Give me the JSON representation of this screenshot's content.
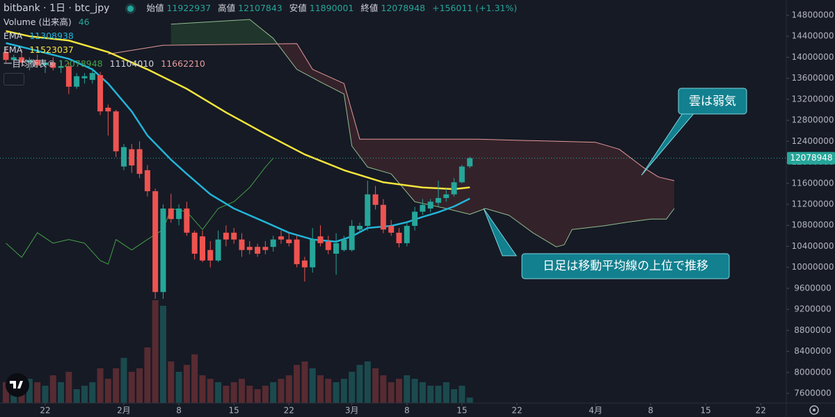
{
  "chart_data": {
    "type": "candlestick",
    "title": "bitbank · 1日 · btc_jpy",
    "ohlc_labels": [
      "始値",
      "高値",
      "安値",
      "終値"
    ],
    "change": "+156011 (+1.31%)",
    "up_color": "#26a69a",
    "down_color": "#ef5350",
    "grid": false,
    "xlim": [
      16.25,
      116.25
    ],
    "ylim": [
      7415000,
      15091000
    ],
    "xticks": [
      {
        "value": 22,
        "label": "22"
      },
      {
        "value": 32,
        "label": "2月"
      },
      {
        "value": 39,
        "label": "8"
      },
      {
        "value": 46,
        "label": "15"
      },
      {
        "value": 53,
        "label": "22"
      },
      {
        "value": 61,
        "label": "3月"
      },
      {
        "value": 68,
        "label": "8"
      },
      {
        "value": 75,
        "label": "15"
      },
      {
        "value": 82,
        "label": "22"
      },
      {
        "value": 92,
        "label": "4月"
      },
      {
        "value": 99,
        "label": "8"
      },
      {
        "value": 106,
        "label": "15"
      },
      {
        "value": 113,
        "label": "22"
      }
    ],
    "yticks": [
      7600000,
      8000000,
      8400000,
      8800000,
      9200000,
      9600000,
      10000000,
      10400000,
      10800000,
      11200000,
      11600000,
      12000000,
      12400000,
      12800000,
      13200000,
      13600000,
      14000000,
      14400000,
      14800000
    ],
    "x": [
      17,
      18,
      19,
      20,
      21,
      22,
      23,
      24,
      25,
      26,
      27,
      28,
      29,
      30,
      31,
      32,
      33,
      34,
      35,
      36,
      37,
      38,
      39,
      40,
      41,
      42,
      43,
      44,
      45,
      46,
      47,
      48,
      49,
      50,
      51,
      52,
      53,
      54,
      55,
      56,
      57,
      58,
      59,
      60,
      61,
      62,
      63,
      64,
      65,
      66,
      67,
      68,
      69,
      70,
      71,
      72,
      73,
      74,
      75,
      76
    ],
    "open": [
      14100000,
      13950000,
      14000000,
      13900000,
      13950000,
      13850000,
      13900000,
      13800000,
      13830000,
      13440000,
      13600000,
      13570000,
      13660000,
      13040000,
      12970000,
      11920000,
      12250000,
      12250000,
      11850000,
      11450000,
      9530000,
      11120000,
      10920000,
      11120000,
      10660000,
      10590000,
      10330000,
      10130000,
      10660000,
      10660000,
      10530000,
      10390000,
      10390000,
      10390000,
      10390000,
      10590000,
      10530000,
      10530000,
      10130000,
      10000000,
      10590000,
      10490000,
      10260000,
      10330000,
      10330000,
      10720000,
      10790000,
      11390000,
      11190000,
      10790000,
      10660000,
      10460000,
      10790000,
      11060000,
      11120000,
      11230000,
      11320000,
      11390000,
      11620000,
      11922937
    ],
    "high": [
      14200000,
      14050000,
      14150000,
      14000000,
      14050000,
      13950000,
      14000000,
      13950000,
      13900000,
      13700000,
      13700000,
      13760000,
      13720000,
      13100000,
      13000000,
      12350000,
      12350000,
      12400000,
      11950000,
      11500000,
      11200000,
      11400000,
      11200000,
      11250000,
      10700000,
      10700000,
      10500000,
      10700000,
      10800000,
      10750000,
      10650000,
      10500000,
      10450000,
      10500000,
      10600000,
      10700000,
      10650000,
      10600000,
      10200000,
      10750000,
      10800000,
      10600000,
      10650000,
      10600000,
      10900000,
      10850000,
      11650000,
      11550000,
      11300000,
      10900000,
      10750000,
      10850000,
      11150000,
      11300000,
      11300000,
      11650000,
      11500000,
      11700000,
      11950000,
      12107843
    ],
    "low": [
      13900000,
      13800000,
      13850000,
      13750000,
      13800000,
      13700000,
      13750000,
      13700000,
      13300000,
      13400000,
      13500000,
      13500000,
      12900000,
      12510000,
      12100000,
      11850000,
      11800000,
      11700000,
      11350000,
      9400000,
      9400000,
      10850000,
      10800000,
      10600000,
      10150000,
      10100000,
      10000000,
      10100000,
      10400000,
      10450000,
      10200000,
      10250000,
      10200000,
      10250000,
      10300000,
      10450000,
      10400000,
      10000000,
      9730000,
      9900000,
      10400000,
      10250000,
      9860000,
      10300000,
      10300000,
      10650000,
      10700000,
      11100000,
      10650000,
      10600000,
      10380000,
      10400000,
      10700000,
      11000000,
      11050000,
      11150000,
      11250000,
      11350000,
      11600000,
      11890001
    ],
    "close": [
      13950000,
      14000000,
      13900000,
      13950000,
      13850000,
      13900000,
      13800000,
      13830000,
      13440000,
      13640000,
      13640000,
      13700000,
      12970000,
      12970000,
      12210000,
      12290000,
      11940000,
      11780000,
      11450000,
      9530000,
      11120000,
      10920000,
      11120000,
      10660000,
      10260000,
      10130000,
      10130000,
      10530000,
      10530000,
      10530000,
      10330000,
      10330000,
      10260000,
      10330000,
      10530000,
      10530000,
      10460000,
      10060000,
      10000000,
      10530000,
      10460000,
      10330000,
      10460000,
      10530000,
      10790000,
      10790000,
      11390000,
      11190000,
      10720000,
      10660000,
      10460000,
      10790000,
      11060000,
      11190000,
      11250000,
      11320000,
      11390000,
      11620000,
      11920000,
      12078948
    ],
    "volume": {
      "name": "Volume (出来高)",
      "up_color": "rgba(38,166,154,0.35)",
      "down_color": "rgba(239,83,80,0.3)",
      "values": [
        173,
        144,
        115,
        201,
        173,
        144,
        230,
        173,
        259,
        115,
        144,
        173,
        288,
        201,
        288,
        374,
        259,
        288,
        460,
        851,
        805,
        345,
        259,
        316,
        403,
        230,
        201,
        173,
        144,
        173,
        201,
        144,
        115,
        144,
        173,
        201,
        230,
        316,
        345,
        288,
        230,
        201,
        173,
        201,
        259,
        316,
        345,
        288,
        230,
        173,
        201,
        230,
        201,
        173,
        144,
        144,
        173,
        115,
        144,
        46
      ]
    },
    "lines": [
      {
        "name": "EMA",
        "color": "#22b5d8",
        "x": [
          17,
          20,
          25,
          28,
          30,
          33,
          35,
          38,
          40,
          43,
          46,
          50,
          53,
          56,
          59,
          61,
          63,
          66,
          68,
          70,
          72,
          74,
          76
        ],
        "values": [
          14270000,
          14160000,
          13970000,
          13770000,
          13500000,
          12970000,
          12510000,
          12050000,
          11780000,
          11390000,
          11120000,
          10860000,
          10660000,
          10530000,
          10490000,
          10590000,
          10750000,
          10790000,
          10860000,
          10960000,
          11050000,
          11160000,
          11308938
        ]
      },
      {
        "name": "EMA",
        "color": "#f5e63c",
        "x": [
          17,
          20,
          25,
          30,
          35,
          40,
          45,
          50,
          55,
          60,
          65,
          70,
          74,
          76
        ],
        "values": [
          14500000,
          14400000,
          14320000,
          14100000,
          13770000,
          13400000,
          12950000,
          12540000,
          12150000,
          11850000,
          11620000,
          11520000,
          11490000,
          11523037
        ]
      }
    ],
    "ichimoku": {
      "name": "一目均衡表®",
      "legend_values": [
        11104010,
        11662210
      ],
      "bull_fill": "rgba(76,175,80,0.18)",
      "bear_fill": "rgba(239,83,80,0.14)",
      "span_a": {
        "color": "#8fbf8f",
        "x": [
          38,
          48,
          51,
          54,
          57,
          60,
          61,
          63,
          66,
          69,
          73,
          76,
          78,
          81,
          84,
          87,
          88,
          89,
          93,
          96,
          99,
          101,
          102
        ],
        "values": [
          14630000,
          14720000,
          14360000,
          13770000,
          13530000,
          13300000,
          12310000,
          11910000,
          11780000,
          11250000,
          11120000,
          11010000,
          11120000,
          10990000,
          10660000,
          10390000,
          10430000,
          10720000,
          10790000,
          10860000,
          10920000,
          10920000,
          11120000
        ]
      },
      "span_b": {
        "color": "#e59a9a",
        "x": [
          30,
          37,
          54,
          56,
          60,
          62,
          77,
          92,
          95,
          98,
          100,
          102
        ],
        "values": [
          14060000,
          14230000,
          14260000,
          13770000,
          13500000,
          12440000,
          12440000,
          12380000,
          12250000,
          11910000,
          11720000,
          11650000
        ]
      },
      "lagging": {
        "color": "#43a047",
        "x": [
          17,
          19,
          21,
          23,
          25,
          27,
          29,
          30,
          31,
          33,
          35,
          37,
          38,
          40,
          42,
          44,
          46,
          48,
          50,
          51
        ],
        "values": [
          10460000,
          10190000,
          10660000,
          10460000,
          10530000,
          10460000,
          10130000,
          10060000,
          10530000,
          10330000,
          10530000,
          10720000,
          11120000,
          11060000,
          10720000,
          11120000,
          11250000,
          11520000,
          11910000,
          12078948
        ]
      }
    },
    "annotations": [
      "雲は弱気",
      "日足は移動平均線の上位で推移"
    ]
  }
}
